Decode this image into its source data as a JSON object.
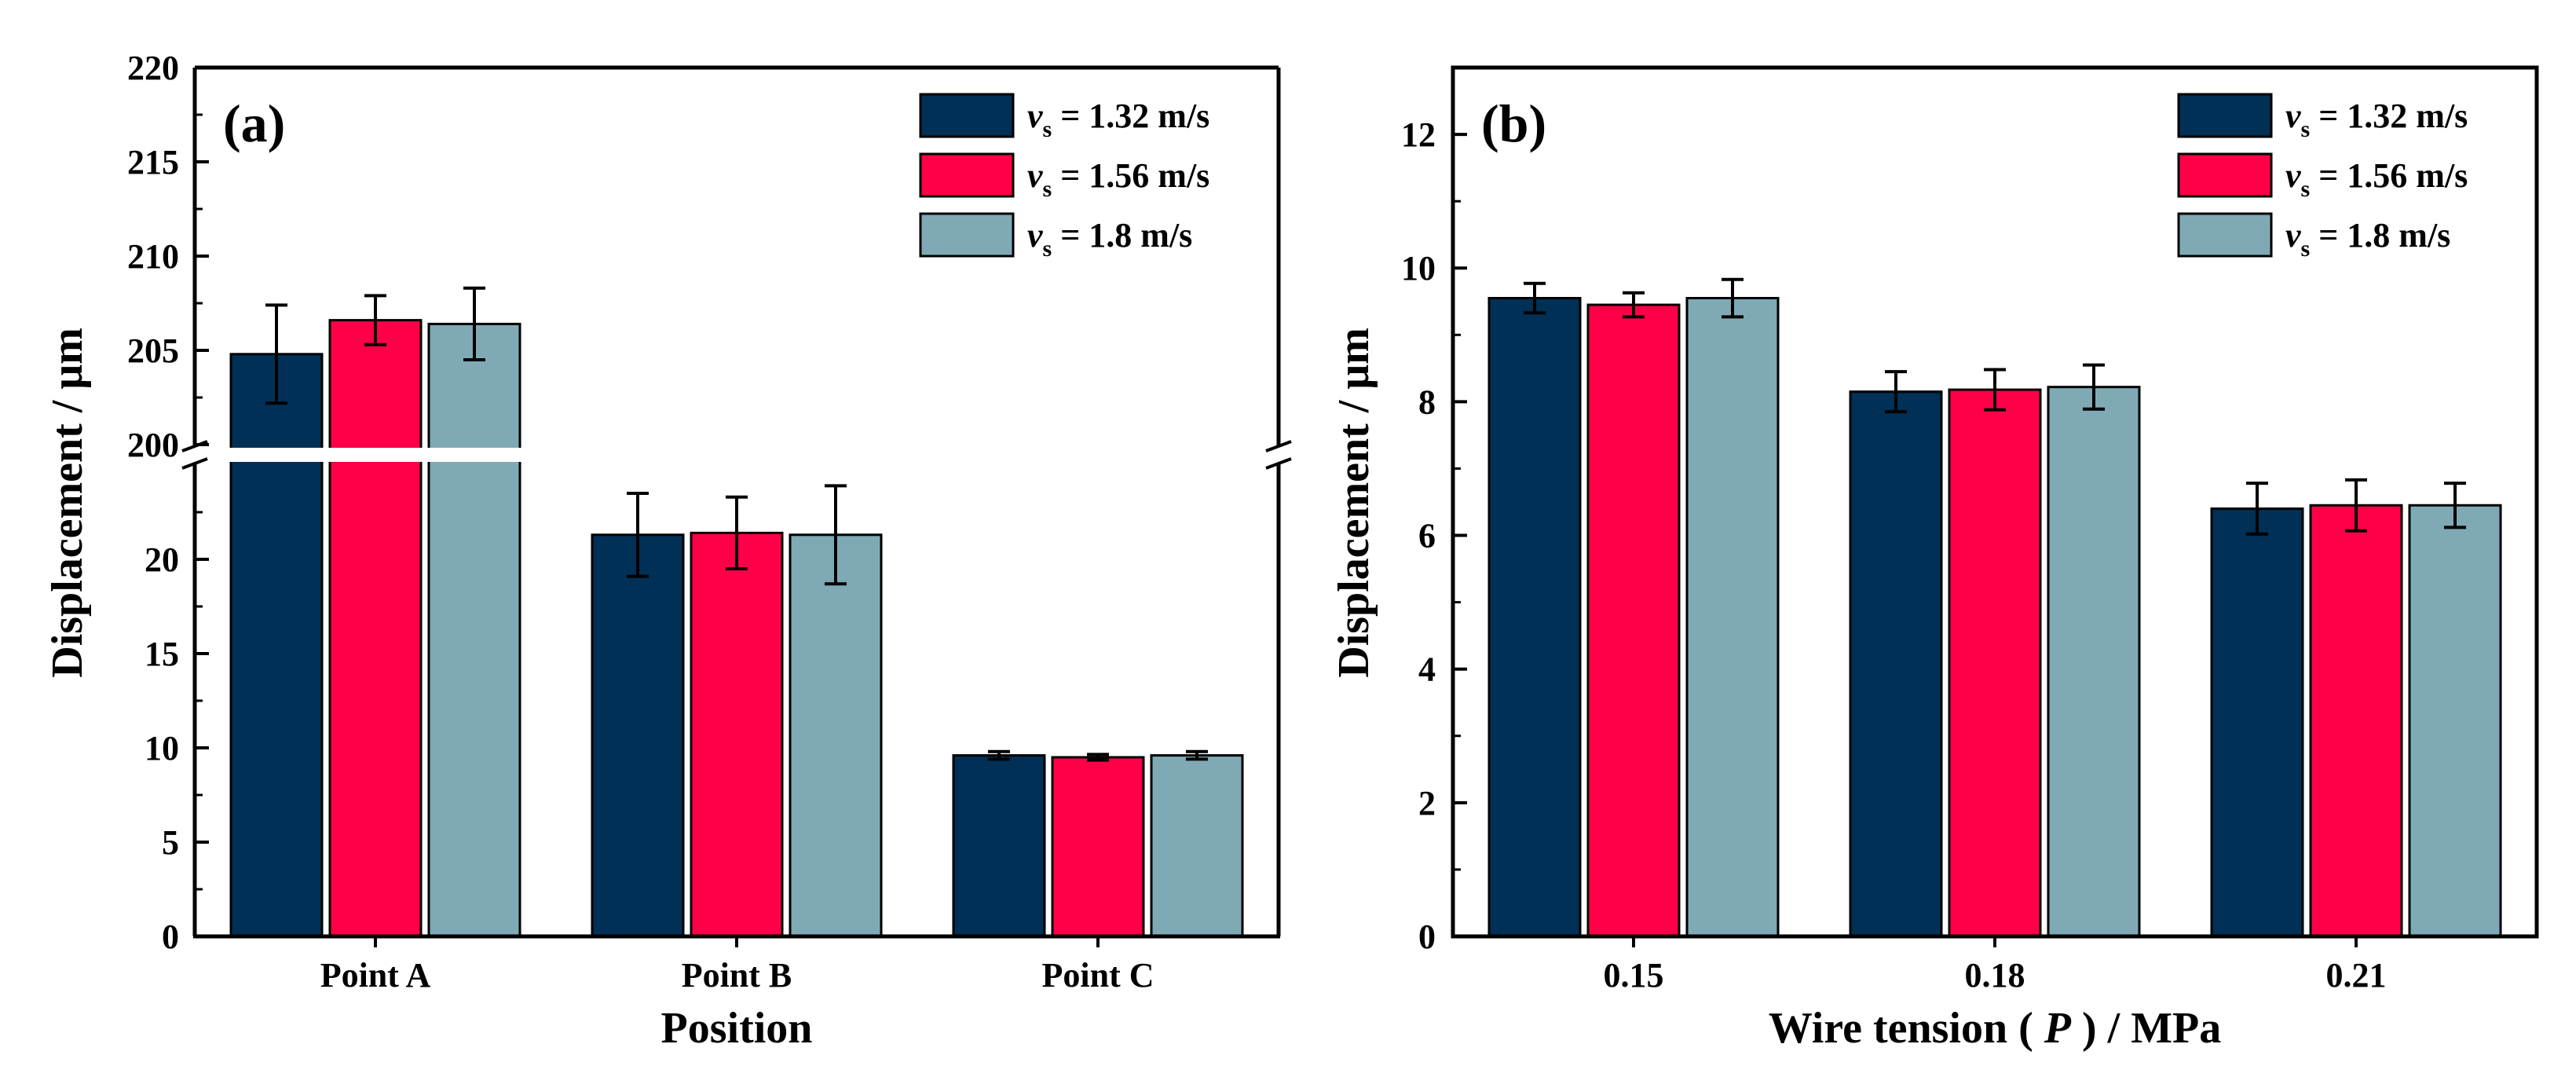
{
  "legend": {
    "symbol": "v",
    "subscript": "s",
    "entries": [
      " = 1.32 m/s",
      " = 1.56 m/s",
      " = 1.8 m/s"
    ]
  },
  "colors": {
    "series": [
      "#003056",
      "#ff0048",
      "#7faab5"
    ],
    "axis": "#000000",
    "background": "#ffffff"
  },
  "chart_data": [
    {
      "type": "bar",
      "panel_label": "(a)",
      "title": "",
      "xlabel": "Position",
      "ylabel": "Displacement / μm",
      "categories": [
        "Point A",
        "Point B",
        "Point C"
      ],
      "series": [
        {
          "name": "vs = 1.32 m/s",
          "values": [
            204.8,
            21.3,
            9.6
          ],
          "errors": [
            2.6,
            2.2,
            0.2
          ]
        },
        {
          "name": "vs = 1.56 m/s",
          "values": [
            206.6,
            21.4,
            9.5
          ],
          "errors": [
            1.3,
            1.9,
            0.15
          ]
        },
        {
          "name": "vs = 1.8 m/s",
          "values": [
            206.4,
            21.3,
            9.6
          ],
          "errors": [
            1.9,
            2.6,
            0.2
          ]
        }
      ],
      "axis_break": {
        "lower_range": [
          0,
          25
        ],
        "upper_range": [
          200,
          220
        ]
      },
      "lower_ticks": [
        0,
        5,
        10,
        15,
        20
      ],
      "upper_ticks": [
        200,
        205,
        210,
        215,
        220
      ],
      "legend_position": "top-right",
      "grid": false
    },
    {
      "type": "bar",
      "panel_label": "(b)",
      "title": "",
      "xlabel": "Wire tension ( P ) / MPa",
      "ylabel": "Displacement / μm",
      "categories": [
        "0.15",
        "0.18",
        "0.21"
      ],
      "series": [
        {
          "name": "vs = 1.32 m/s",
          "values": [
            9.55,
            8.15,
            6.4
          ],
          "errors": [
            0.22,
            0.3,
            0.38
          ]
        },
        {
          "name": "vs = 1.56 m/s",
          "values": [
            9.45,
            8.18,
            6.45
          ],
          "errors": [
            0.18,
            0.3,
            0.38
          ]
        },
        {
          "name": "vs = 1.8 m/s",
          "values": [
            9.55,
            8.22,
            6.45
          ],
          "errors": [
            0.28,
            0.33,
            0.33
          ]
        }
      ],
      "ylim": [
        0,
        13
      ],
      "yticks": [
        0,
        2,
        4,
        6,
        8,
        10,
        12
      ],
      "legend_position": "top-right",
      "grid": false
    }
  ]
}
